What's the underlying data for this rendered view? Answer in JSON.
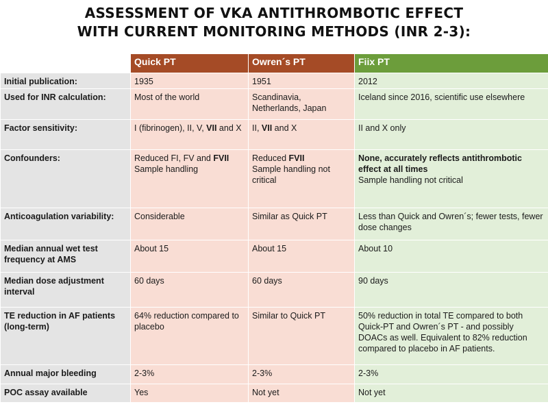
{
  "title": {
    "line1": "ASSESSMENT OF VKA ANTITHROMBOTIC EFFECT",
    "line2": "WITH CURRENT MONITORING METHODS (INR 2-3):"
  },
  "headers": {
    "col0": "",
    "quick": "Quick PT",
    "owren": "Owren´s PT",
    "fiix": "Fiix PT"
  },
  "rows": {
    "initial_publication": {
      "label": "Initial publication:",
      "quick": "1935",
      "owren": "1951",
      "fiix": "2012"
    },
    "inr_calculation": {
      "label": "Used for INR calculation:",
      "quick": "Most of the world",
      "owren": "Scandinavia, Netherlands, Japan",
      "fiix": "Iceland since 2016, scientific use elsewhere"
    },
    "factor_sensitivity": {
      "label": "Factor sensitivity:",
      "quick_pre": "I (fibrinogen), II, V, ",
      "quick_bold": "VII",
      "quick_post": " and X",
      "owren_pre": "II, ",
      "owren_bold": "VII",
      "owren_post": " and X",
      "fiix": "II and X only"
    },
    "confounders": {
      "label": "Confounders:",
      "quick_pre": "Reduced FI, FV and ",
      "quick_bold": "FVII",
      "quick_line2": "Sample handling",
      "owren_pre": "Reduced ",
      "owren_bold": "FVII",
      "owren_line2": "Sample handling not critical",
      "fiix_bold": "None, accurately  reflects antithrombotic effect at all times",
      "fiix_line2": "Sample handling not critical"
    },
    "anticoagulation_variability": {
      "label": "Anticoagulation variability:",
      "quick": "Considerable",
      "owren": "Similar as Quick PT",
      "fiix": "Less than Quick and Owren´s; fewer tests, fewer dose changes"
    },
    "wet_test_frequency": {
      "label": "Median annual wet test frequency at AMS",
      "quick": "About 15",
      "owren": "About 15",
      "fiix": "About 10"
    },
    "dose_adjustment": {
      "label": "Median dose adjustment interval",
      "quick": "60 days",
      "owren": "60 days",
      "fiix": "90 days"
    },
    "te_reduction": {
      "label": "TE reduction in AF patients (long-term)",
      "quick": "64% reduction compared to placebo",
      "owren": "Similar to Quick PT",
      "fiix": "50% reduction in total TE compared to both Quick-PT and Owren´s PT - and possibly DOACs as well. Equivalent to 82% reduction compared to placebo in AF patients."
    },
    "major_bleeding": {
      "label": "Annual major bleeding",
      "quick": "2-3%",
      "owren": "2-3%",
      "fiix": "2-3%"
    },
    "poc_assay": {
      "label": "POC assay available",
      "quick": "Yes",
      "owren": "Not yet",
      "fiix": "Not yet"
    }
  },
  "colors": {
    "header_quick_owren": "#a54b26",
    "header_fiix": "#6c9d3b",
    "label_bg": "#e4e4e4",
    "quick_owren_bg": "#f9ddd4",
    "fiix_bg": "#e2efd9"
  }
}
